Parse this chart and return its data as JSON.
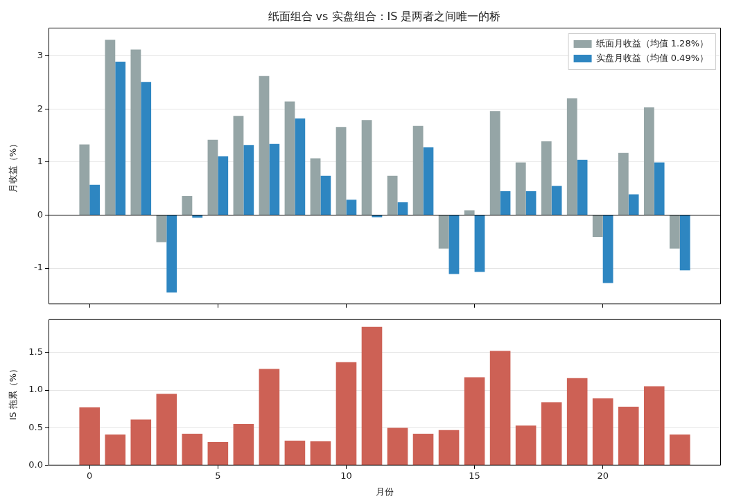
{
  "chart_data": [
    {
      "type": "bar",
      "title": "纸面组合 vs 实盘组合：IS 是两者之间唯一的桥",
      "ylabel": "月收益（%）",
      "x": [
        0,
        1,
        2,
        3,
        4,
        5,
        6,
        7,
        8,
        9,
        10,
        11,
        12,
        13,
        14,
        15,
        16,
        17,
        18,
        19,
        20,
        21,
        22,
        23
      ],
      "xlim": [
        -1.6,
        24.6
      ],
      "xticks": [
        0,
        5,
        10,
        15,
        20
      ],
      "ylim": [
        -1.68,
        3.53
      ],
      "yticks": [
        -1,
        0,
        1,
        2,
        3
      ],
      "tick_labels": "y",
      "grid": "y",
      "legend": "top right",
      "series": [
        {
          "name": "纸面月收益（均值 1.28%）",
          "color": "#95a5a6",
          "values": [
            1.33,
            3.3,
            3.12,
            -0.51,
            0.36,
            1.42,
            1.87,
            2.62,
            2.14,
            1.07,
            1.66,
            1.79,
            0.74,
            1.68,
            -0.63,
            0.09,
            1.96,
            0.99,
            1.39,
            2.2,
            -0.41,
            1.17,
            2.03,
            -0.63
          ]
        },
        {
          "name": "实盘月收益（均值 0.49%）",
          "color": "#2e86c1",
          "values": [
            0.57,
            2.89,
            2.51,
            -1.46,
            -0.05,
            1.11,
            1.32,
            1.34,
            1.82,
            0.74,
            0.29,
            -0.04,
            0.24,
            1.28,
            -1.11,
            -1.07,
            0.45,
            0.45,
            0.55,
            1.04,
            -1.28,
            0.39,
            0.99,
            -1.04
          ]
        }
      ],
      "ref_lines": [
        {
          "axis": "y",
          "value": 0,
          "color": "#000000"
        }
      ]
    },
    {
      "type": "bar",
      "xlabel": "月份",
      "ylabel": "IS 拖累（%）",
      "x": [
        0,
        1,
        2,
        3,
        4,
        5,
        6,
        7,
        8,
        9,
        10,
        11,
        12,
        13,
        14,
        15,
        16,
        17,
        18,
        19,
        20,
        21,
        22,
        23
      ],
      "xlim": [
        -1.6,
        24.6
      ],
      "xticks": [
        0,
        5,
        10,
        15,
        20
      ],
      "ylim": [
        0,
        1.94
      ],
      "yticks": [
        {
          "value": 0,
          "label": "0.0"
        },
        {
          "value": 0.5,
          "label": "0.5"
        },
        {
          "value": 1,
          "label": "1.0"
        },
        {
          "value": 1.5,
          "label": "1.5"
        }
      ],
      "grid": "y",
      "series": [
        {
          "color": "#cd6155",
          "values": [
            0.77,
            0.41,
            0.61,
            0.95,
            0.42,
            0.31,
            0.55,
            1.28,
            0.33,
            0.32,
            1.37,
            1.84,
            0.5,
            0.42,
            0.47,
            1.17,
            1.52,
            0.53,
            0.84,
            1.16,
            0.89,
            0.78,
            1.05,
            0.41
          ]
        }
      ]
    }
  ]
}
